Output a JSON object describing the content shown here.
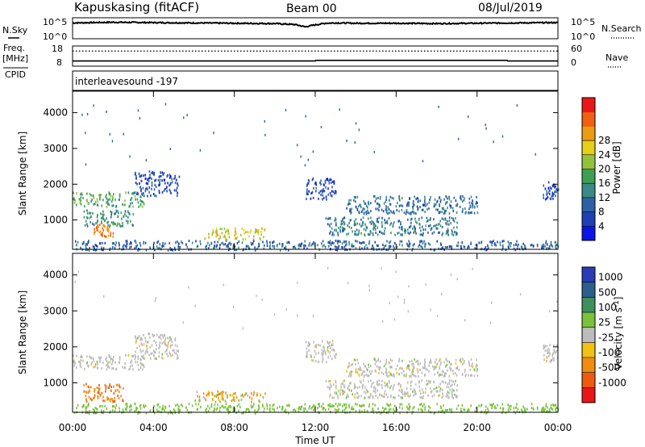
{
  "header": {
    "station": "Kapuskasing (fitACF)",
    "beam": "Beam 00",
    "date": "08/Jul/2019"
  },
  "labels": {
    "nsky": "N.Sky",
    "nsearch": "N.Search",
    "freq": "Freq.",
    "freq_unit": "[MHz]",
    "nave": "Nave",
    "cpid": "CPID",
    "cpid_value": "interleavesound -197",
    "noise_tick_top": "10^5",
    "noise_tick_bottom": "10^0",
    "freq_tick_top": "18",
    "freq_tick_bottom": "8",
    "nave_tick_top": "60",
    "nave_tick_bottom": "0"
  },
  "chart_data": [
    {
      "type": "line",
      "panel": "noise",
      "series": [
        {
          "name": "N.Sky"
        },
        {
          "name": "N.Search"
        }
      ],
      "ylim": [
        "10^0",
        "10^5"
      ],
      "x": [
        "00:00",
        "02:00",
        "04:00",
        "06:00",
        "08:00",
        "10:00",
        "11:00",
        "11:30",
        "12:00",
        "12:30",
        "13:00",
        "14:00",
        "16:00",
        "18:00",
        "20:00",
        "22:00",
        "24:00"
      ],
      "y_exponent": [
        4.4,
        4.6,
        4.5,
        4.4,
        4.3,
        4.2,
        3.9,
        3.2,
        3.8,
        4.3,
        4.4,
        4.3,
        4.3,
        4.2,
        4.3,
        4.4,
        4.5
      ]
    },
    {
      "type": "line",
      "panel": "frequency",
      "series": [
        {
          "name": "Freq."
        },
        {
          "name": "Nave"
        }
      ],
      "ylim": [
        8,
        18
      ],
      "x": [
        "00:00",
        "12:00",
        "12:01",
        "21:30",
        "21:31",
        "24:00"
      ],
      "freq_mhz": [
        10.2,
        10.2,
        10.6,
        10.6,
        10.2,
        10.2
      ],
      "nave_ylim": [
        0,
        60
      ],
      "nave": [
        50,
        50,
        50,
        50,
        50,
        50
      ]
    },
    {
      "type": "heatmap",
      "panel": "power",
      "xlabel": "",
      "ylabel": "Slant Range [km]",
      "xlim": [
        "00:00",
        "24:00"
      ],
      "ylim": [
        180,
        4600
      ],
      "y_ticks": [
        1000,
        2000,
        3000,
        4000
      ],
      "colorbar": {
        "label": "Power [dB]",
        "ticks": [
          4,
          8,
          12,
          16,
          20,
          24,
          28
        ],
        "colors": [
          "#0a14e6",
          "#1e40b4",
          "#2c62a4",
          "#3a8a86",
          "#3e9e56",
          "#93c33d",
          "#e6d018",
          "#ec9c14",
          "#f06010",
          "#e81818"
        ]
      },
      "regions": [
        {
          "t0": "00:00",
          "t1": "03:30",
          "r0": 1400,
          "r1": 1800,
          "level": 14
        },
        {
          "t0": "00:30",
          "t1": "03:00",
          "r0": 850,
          "r1": 1300,
          "level": 12
        },
        {
          "t0": "01:00",
          "t1": "02:00",
          "r0": 550,
          "r1": 900,
          "level": 26
        },
        {
          "t0": "03:00",
          "t1": "05:15",
          "r0": 1700,
          "r1": 2400,
          "level": 6
        },
        {
          "t0": "06:30",
          "t1": "09:30",
          "r0": 480,
          "r1": 800,
          "level": 20
        },
        {
          "t0": "00:00",
          "t1": "24:00",
          "r0": 180,
          "r1": 450,
          "level": 8
        },
        {
          "t0": "11:30",
          "t1": "13:00",
          "r0": 1600,
          "r1": 2200,
          "level": 6
        },
        {
          "t0": "13:30",
          "t1": "20:00",
          "r0": 1200,
          "r1": 1700,
          "level": 9
        },
        {
          "t0": "12:30",
          "t1": "19:00",
          "r0": 600,
          "r1": 1100,
          "level": 10
        },
        {
          "t0": "23:15",
          "t1": "24:00",
          "r0": 1600,
          "r1": 2100,
          "level": 6
        }
      ]
    },
    {
      "type": "heatmap",
      "panel": "velocity",
      "xlabel": "Time UT",
      "ylabel": "Slant Range [km]",
      "x_ticks": [
        "00:00",
        "04:00",
        "08:00",
        "12:00",
        "16:00",
        "20:00",
        "00:00"
      ],
      "xlim": [
        "00:00",
        "24:00"
      ],
      "ylim": [
        180,
        4600
      ],
      "y_ticks": [
        1000,
        2000,
        3000,
        4000
      ],
      "colorbar": {
        "label": "Velocity [m s^-1]",
        "ticks": [
          "1000",
          "500",
          "100",
          "25",
          "-25",
          "-100",
          "-500",
          "-1000"
        ],
        "colors": [
          "#2a3cb4",
          "#2e5e8c",
          "#3f8f5d",
          "#7ac23c",
          "#bcbcbc",
          "#f2c212",
          "#f08c10",
          "#ee5a10",
          "#e81616"
        ]
      },
      "regions": [
        {
          "t0": "00:00",
          "t1": "03:30",
          "r0": 1400,
          "r1": 1800,
          "value": 0
        },
        {
          "t0": "00:30",
          "t1": "02:30",
          "r0": 500,
          "r1": 1000,
          "value": -450
        },
        {
          "t0": "03:00",
          "t1": "05:15",
          "r0": 1700,
          "r1": 2400,
          "value": 0
        },
        {
          "t0": "06:00",
          "t1": "09:30",
          "r0": 500,
          "r1": 800,
          "value": -150
        },
        {
          "t0": "00:00",
          "t1": "24:00",
          "r0": 180,
          "r1": 450,
          "value": 60
        },
        {
          "t0": "11:30",
          "t1": "13:00",
          "r0": 1600,
          "r1": 2200,
          "value": 0
        },
        {
          "t0": "13:30",
          "t1": "20:00",
          "r0": 1200,
          "r1": 1700,
          "value": 0
        },
        {
          "t0": "12:30",
          "t1": "19:00",
          "r0": 600,
          "r1": 1100,
          "value": 0
        },
        {
          "t0": "23:15",
          "t1": "24:00",
          "r0": 1600,
          "r1": 2100,
          "value": 0
        }
      ]
    }
  ]
}
